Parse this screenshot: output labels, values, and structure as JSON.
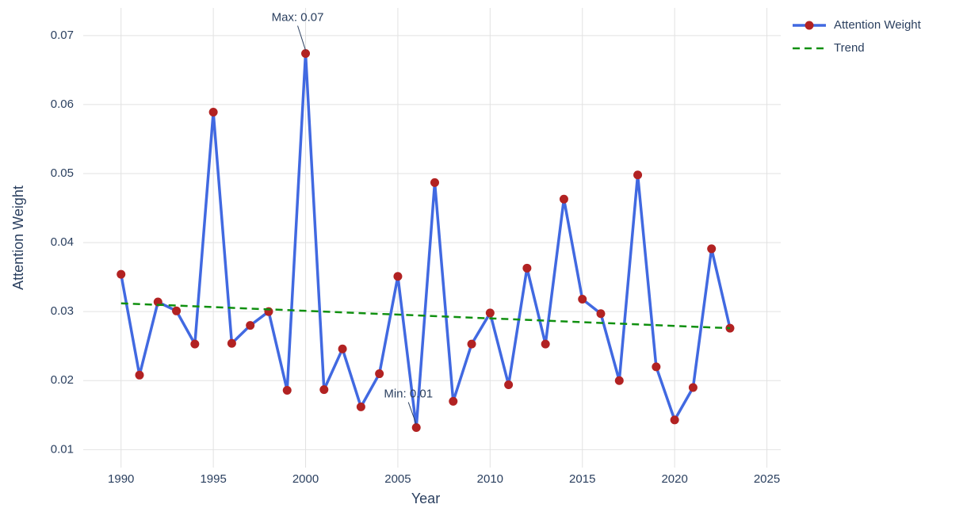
{
  "chart_data": {
    "type": "line",
    "x_label": "Year",
    "y_label": "Attention Weight",
    "x": [
      1990,
      1991,
      1992,
      1993,
      1994,
      1995,
      1996,
      1997,
      1998,
      1999,
      2000,
      2001,
      2002,
      2003,
      2004,
      2005,
      2006,
      2007,
      2008,
      2009,
      2010,
      2011,
      2012,
      2013,
      2014,
      2015,
      2016,
      2017,
      2018,
      2019,
      2020,
      2021,
      2022,
      2023
    ],
    "series": [
      {
        "name": "Attention Weight",
        "color": "#4169e1",
        "marker_color": "#b22222",
        "values": [
          0.0354,
          0.0208,
          0.0314,
          0.0301,
          0.0253,
          0.0589,
          0.0254,
          0.028,
          0.03,
          0.0186,
          0.0674,
          0.0187,
          0.0246,
          0.0162,
          0.021,
          0.0351,
          0.0132,
          0.0487,
          0.017,
          0.0253,
          0.0298,
          0.0194,
          0.0363,
          0.0253,
          0.0463,
          0.0318,
          0.0297,
          0.02,
          0.0498,
          0.022,
          0.0143,
          0.019,
          0.0391,
          0.0276
        ]
      },
      {
        "name": "Trend",
        "color": "#109010",
        "dash": true,
        "x": [
          1990,
          2023
        ],
        "values": [
          0.0312,
          0.0276
        ]
      }
    ],
    "annotations": [
      {
        "text": "Max: 0.07",
        "x": 2000,
        "y": 0.0674
      },
      {
        "text": "Min: 0.01",
        "x": 2006,
        "y": 0.0132
      }
    ],
    "xlim": [
      1987.95,
      2025.75
    ],
    "ylim": [
      0.0074,
      0.074
    ],
    "xticks": [
      1990,
      1995,
      2000,
      2005,
      2010,
      2015,
      2020,
      2025
    ],
    "yticks": [
      0.01,
      0.02,
      0.03,
      0.04,
      0.05,
      0.06,
      0.07
    ],
    "grid": true,
    "legend": "outside-top-right"
  }
}
